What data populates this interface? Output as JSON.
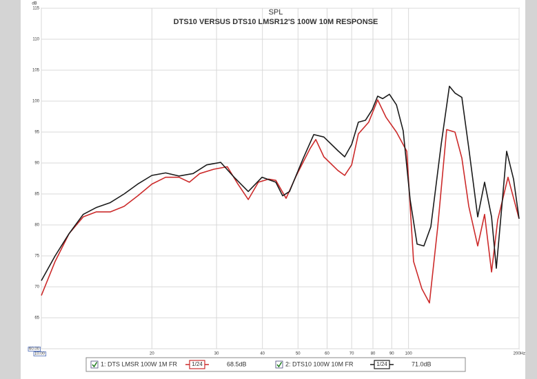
{
  "chart_data": {
    "type": "line",
    "title": "SPL",
    "subtitle": "DTS10 VERSUS DTS10 LMSR12'S 100W 10M RESPONSE",
    "y_unit": "dB",
    "xscale": "log",
    "xlim": [
      10,
      200
    ],
    "xticks": [
      {
        "value": 10,
        "label": "10.00"
      },
      20,
      30,
      40,
      50,
      60,
      70,
      80,
      90,
      100,
      {
        "value": 200,
        "label": "200Hz"
      }
    ],
    "ylim": [
      60,
      115
    ],
    "yticks": [
      {
        "value": 60,
        "label": "60.00"
      },
      65,
      70,
      75,
      80,
      85,
      90,
      95,
      100,
      105,
      110,
      115
    ],
    "grid": true,
    "legend": "bottom",
    "series": [
      {
        "name": "1: DTS LMSR 100W 1M FR",
        "color": "#cc2a2a",
        "smoothing": "1/24",
        "level": "68.5dB",
        "x": [
          10,
          10.9,
          11.9,
          13.0,
          14.1,
          15.4,
          16.8,
          18.3,
          20.0,
          21.8,
          23.7,
          25.3,
          27.0,
          29.5,
          32.1,
          34.3,
          36.6,
          39.0,
          41.6,
          43.5,
          46.4,
          49.5,
          54.0,
          55.9,
          58.8,
          64.2,
          67.0,
          70.0,
          73.0,
          77.9,
          82.4,
          86.8,
          92.7,
          98.9,
          103.2,
          108.7,
          114.0,
          120.1,
          127.0,
          133.8,
          139.7,
          145.9,
          154.3,
          161.1,
          168.3,
          174.9,
          186.6,
          200
        ],
        "values": [
          68.6,
          74.1,
          78.6,
          81.3,
          82.1,
          82.1,
          83.0,
          84.7,
          86.6,
          87.7,
          87.7,
          86.9,
          88.3,
          89.0,
          89.4,
          86.6,
          84.1,
          86.9,
          87.4,
          87.2,
          84.3,
          88.0,
          92.4,
          93.8,
          91.0,
          88.8,
          88.0,
          89.7,
          94.7,
          96.6,
          100.2,
          97.4,
          95.0,
          91.9,
          74.1,
          69.7,
          67.4,
          79.7,
          95.4,
          95.0,
          90.8,
          83.0,
          76.6,
          81.7,
          72.4,
          80.8,
          87.7,
          81.0
        ]
      },
      {
        "name": "2: DTS10 100W 10M FR",
        "color": "#1a1a1a",
        "smoothing": "1/24",
        "level": "71.0dB",
        "x": [
          10,
          10.9,
          11.9,
          13.0,
          14.1,
          15.4,
          16.8,
          18.3,
          20.0,
          21.8,
          23.7,
          25.9,
          28.2,
          30.8,
          33.5,
          36.6,
          39.9,
          43.5,
          45.4,
          47.4,
          51.7,
          55.2,
          58.8,
          64.2,
          67.0,
          70.0,
          73.0,
          76.3,
          79.6,
          82.4,
          85.0,
          88.7,
          92.7,
          96.7,
          101.0,
          105.5,
          110.1,
          115.0,
          122.7,
          129.2,
          133.8,
          139.7,
          145.9,
          154.3,
          161.1,
          168.3,
          173.4,
          179.5,
          185.0,
          193.2,
          200
        ],
        "values": [
          71.0,
          75.0,
          78.6,
          81.7,
          82.8,
          83.6,
          85.0,
          86.6,
          88.0,
          88.4,
          87.9,
          88.3,
          89.7,
          90.1,
          87.7,
          85.4,
          87.7,
          86.9,
          84.7,
          85.4,
          90.8,
          94.6,
          94.2,
          92.0,
          91.0,
          93.0,
          96.6,
          96.9,
          98.6,
          100.8,
          100.4,
          101.1,
          99.4,
          95.2,
          84.1,
          76.9,
          76.6,
          79.7,
          93.0,
          102.4,
          101.3,
          100.6,
          92.4,
          81.3,
          86.9,
          81.3,
          73.0,
          83.0,
          91.9,
          87.4,
          81.0
        ]
      }
    ]
  }
}
